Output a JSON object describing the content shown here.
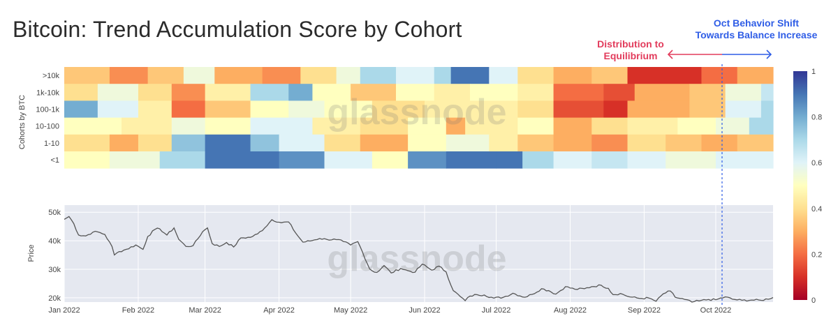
{
  "page": {
    "title": "Bitcoin: Trend Accumulation Score by Cohort"
  },
  "annotations": {
    "distribution": [
      "Distribution to",
      "Equilibrium"
    ],
    "oct_shift": [
      "Oct Behavior Shift",
      "Towards Balance Increase"
    ]
  },
  "watermark": "glassnode",
  "colors": {
    "dist_annotation": "#e23c5c",
    "oct_annotation": "#2f5de6",
    "price_line": "#555555",
    "price_panel_bg": "#e5e8f0"
  },
  "chart_data": [
    {
      "type": "heatmap",
      "title": "Bitcoin: Trend Accumulation Score by Cohort",
      "ylabel": "Cohorts by BTC",
      "rows": [
        ">10k",
        "1k-10k",
        "100-1k",
        "10-100",
        "1-10",
        "<1"
      ],
      "x_range": [
        "2022-01-01",
        "2022-10-25"
      ],
      "colorscale": {
        "min": 0,
        "max": 1,
        "ticks": [
          0,
          0.2,
          0.4,
          0.6,
          0.8,
          1
        ],
        "scheme": "RdYlBu"
      },
      "segments": {
        ">10k": [
          [
            "2022-01-01",
            0.35
          ],
          [
            "2022-01-20",
            0.25
          ],
          [
            "2022-02-05",
            0.35
          ],
          [
            "2022-02-20",
            0.55
          ],
          [
            "2022-03-05",
            0.3
          ],
          [
            "2022-03-25",
            0.25
          ],
          [
            "2022-04-10",
            0.4
          ],
          [
            "2022-04-25",
            0.55
          ],
          [
            "2022-05-05",
            0.7
          ],
          [
            "2022-05-20",
            0.6
          ],
          [
            "2022-06-05",
            0.7
          ],
          [
            "2022-06-12",
            0.9
          ],
          [
            "2022-06-28",
            0.6
          ],
          [
            "2022-07-10",
            0.4
          ],
          [
            "2022-07-25",
            0.3
          ],
          [
            "2022-08-10",
            0.35
          ],
          [
            "2022-08-25",
            0.1
          ],
          [
            "2022-09-25",
            0.2
          ],
          [
            "2022-10-10",
            0.3
          ]
        ],
        "1k-10k": [
          [
            "2022-01-01",
            0.4
          ],
          [
            "2022-01-15",
            0.55
          ],
          [
            "2022-02-01",
            0.4
          ],
          [
            "2022-02-15",
            0.25
          ],
          [
            "2022-03-01",
            0.45
          ],
          [
            "2022-03-20",
            0.7
          ],
          [
            "2022-04-05",
            0.8
          ],
          [
            "2022-04-15",
            0.5
          ],
          [
            "2022-05-01",
            0.35
          ],
          [
            "2022-05-20",
            0.5
          ],
          [
            "2022-06-05",
            0.45
          ],
          [
            "2022-06-20",
            0.5
          ],
          [
            "2022-07-10",
            0.45
          ],
          [
            "2022-07-25",
            0.2
          ],
          [
            "2022-08-15",
            0.15
          ],
          [
            "2022-08-28",
            0.3
          ],
          [
            "2022-09-20",
            0.35
          ],
          [
            "2022-10-05",
            0.55
          ],
          [
            "2022-10-20",
            0.65
          ]
        ],
        "100-1k": [
          [
            "2022-01-01",
            0.8
          ],
          [
            "2022-01-15",
            0.6
          ],
          [
            "2022-02-01",
            0.45
          ],
          [
            "2022-02-15",
            0.2
          ],
          [
            "2022-03-01",
            0.35
          ],
          [
            "2022-03-20",
            0.5
          ],
          [
            "2022-04-05",
            0.55
          ],
          [
            "2022-04-20",
            0.5
          ],
          [
            "2022-05-10",
            0.4
          ],
          [
            "2022-06-01",
            0.45
          ],
          [
            "2022-06-20",
            0.45
          ],
          [
            "2022-07-10",
            0.4
          ],
          [
            "2022-07-25",
            0.15
          ],
          [
            "2022-08-15",
            0.1
          ],
          [
            "2022-08-25",
            0.3
          ],
          [
            "2022-09-20",
            0.35
          ],
          [
            "2022-10-05",
            0.6
          ],
          [
            "2022-10-20",
            0.7
          ]
        ],
        "10-100": [
          [
            "2022-01-01",
            0.5
          ],
          [
            "2022-01-25",
            0.45
          ],
          [
            "2022-02-15",
            0.55
          ],
          [
            "2022-03-01",
            0.5
          ],
          [
            "2022-03-20",
            0.6
          ],
          [
            "2022-04-15",
            0.45
          ],
          [
            "2022-05-05",
            0.4
          ],
          [
            "2022-05-25",
            0.5
          ],
          [
            "2022-06-10",
            0.3
          ],
          [
            "2022-06-18",
            0.45
          ],
          [
            "2022-07-10",
            0.5
          ],
          [
            "2022-07-25",
            0.3
          ],
          [
            "2022-08-10",
            0.4
          ],
          [
            "2022-08-25",
            0.45
          ],
          [
            "2022-09-15",
            0.5
          ],
          [
            "2022-10-01",
            0.55
          ],
          [
            "2022-10-15",
            0.7
          ]
        ],
        "1-10": [
          [
            "2022-01-01",
            0.4
          ],
          [
            "2022-01-20",
            0.3
          ],
          [
            "2022-02-01",
            0.4
          ],
          [
            "2022-02-15",
            0.75
          ],
          [
            "2022-03-01",
            0.9
          ],
          [
            "2022-03-20",
            0.75
          ],
          [
            "2022-04-01",
            0.6
          ],
          [
            "2022-04-20",
            0.4
          ],
          [
            "2022-05-05",
            0.3
          ],
          [
            "2022-05-25",
            0.5
          ],
          [
            "2022-06-10",
            0.55
          ],
          [
            "2022-06-28",
            0.45
          ],
          [
            "2022-07-10",
            0.35
          ],
          [
            "2022-07-25",
            0.3
          ],
          [
            "2022-08-10",
            0.25
          ],
          [
            "2022-08-25",
            0.4
          ],
          [
            "2022-09-10",
            0.35
          ],
          [
            "2022-09-25",
            0.3
          ],
          [
            "2022-10-10",
            0.35
          ]
        ],
        "<1": [
          [
            "2022-01-01",
            0.5
          ],
          [
            "2022-01-20",
            0.55
          ],
          [
            "2022-02-10",
            0.7
          ],
          [
            "2022-03-01",
            0.9
          ],
          [
            "2022-04-01",
            0.85
          ],
          [
            "2022-04-20",
            0.6
          ],
          [
            "2022-05-10",
            0.5
          ],
          [
            "2022-05-25",
            0.85
          ],
          [
            "2022-06-10",
            0.9
          ],
          [
            "2022-07-01",
            0.9
          ],
          [
            "2022-07-12",
            0.7
          ],
          [
            "2022-07-25",
            0.6
          ],
          [
            "2022-08-10",
            0.65
          ],
          [
            "2022-08-25",
            0.6
          ],
          [
            "2022-09-10",
            0.55
          ],
          [
            "2022-10-01",
            0.6
          ],
          [
            "2022-10-15",
            0.6
          ]
        ]
      }
    },
    {
      "type": "line",
      "ylabel": "Price",
      "x_ticks": [
        "Jan 2022",
        "Feb 2022",
        "Mar 2022",
        "Apr 2022",
        "May 2022",
        "Jun 2022",
        "Jul 2022",
        "Aug 2022",
        "Sep 2022",
        "Oct 2022"
      ],
      "y_ticks": [
        "20k",
        "30k",
        "40k",
        "50k"
      ],
      "ylim": [
        18500,
        52500
      ],
      "x_range": [
        "2022-01-01",
        "2022-10-25"
      ],
      "series": [
        {
          "points": [
            [
              "2022-01-01",
              47500
            ],
            [
              "2022-01-03",
              48500
            ],
            [
              "2022-01-05",
              46000
            ],
            [
              "2022-01-07",
              42000
            ],
            [
              "2022-01-10",
              41700
            ],
            [
              "2022-01-13",
              43000
            ],
            [
              "2022-01-15",
              43100
            ],
            [
              "2022-01-18",
              42200
            ],
            [
              "2022-01-21",
              38000
            ],
            [
              "2022-01-22",
              35000
            ],
            [
              "2022-01-24",
              36200
            ],
            [
              "2022-01-27",
              37000
            ],
            [
              "2022-01-31",
              38500
            ],
            [
              "2022-02-03",
              37000
            ],
            [
              "2022-02-05",
              41500
            ],
            [
              "2022-02-08",
              44000
            ],
            [
              "2022-02-10",
              44200
            ],
            [
              "2022-02-13",
              42000
            ],
            [
              "2022-02-16",
              44500
            ],
            [
              "2022-02-18",
              40500
            ],
            [
              "2022-02-21",
              38000
            ],
            [
              "2022-02-24",
              38300
            ],
            [
              "2022-02-28",
              43200
            ],
            [
              "2022-03-02",
              44500
            ],
            [
              "2022-03-04",
              39000
            ],
            [
              "2022-03-07",
              38000
            ],
            [
              "2022-03-10",
              39400
            ],
            [
              "2022-03-13",
              37800
            ],
            [
              "2022-03-16",
              41000
            ],
            [
              "2022-03-20",
              41200
            ],
            [
              "2022-03-23",
              42400
            ],
            [
              "2022-03-26",
              44500
            ],
            [
              "2022-03-29",
              47400
            ],
            [
              "2022-04-02",
              46300
            ],
            [
              "2022-04-05",
              46600
            ],
            [
              "2022-04-08",
              42700
            ],
            [
              "2022-04-11",
              39500
            ],
            [
              "2022-04-14",
              39900
            ],
            [
              "2022-04-18",
              40800
            ],
            [
              "2022-04-21",
              40500
            ],
            [
              "2022-04-25",
              40400
            ],
            [
              "2022-04-28",
              39700
            ],
            [
              "2022-05-01",
              38500
            ],
            [
              "2022-05-04",
              39700
            ],
            [
              "2022-05-06",
              36000
            ],
            [
              "2022-05-09",
              30100
            ],
            [
              "2022-05-11",
              29000
            ],
            [
              "2022-05-12",
              28900
            ],
            [
              "2022-05-15",
              31300
            ],
            [
              "2022-05-18",
              28700
            ],
            [
              "2022-05-22",
              30300
            ],
            [
              "2022-05-25",
              29500
            ],
            [
              "2022-05-28",
              29000
            ],
            [
              "2022-05-31",
              31800
            ],
            [
              "2022-06-04",
              29700
            ],
            [
              "2022-06-07",
              31100
            ],
            [
              "2022-06-10",
              29100
            ],
            [
              "2022-06-13",
              22500
            ],
            [
              "2022-06-16",
              20400
            ],
            [
              "2022-06-18",
              19000
            ],
            [
              "2022-06-20",
              20600
            ],
            [
              "2022-06-23",
              21100
            ],
            [
              "2022-06-26",
              21000
            ],
            [
              "2022-06-30",
              19900
            ],
            [
              "2022-07-04",
              20200
            ],
            [
              "2022-07-08",
              21600
            ],
            [
              "2022-07-13",
              20200
            ],
            [
              "2022-07-16",
              21200
            ],
            [
              "2022-07-20",
              23200
            ],
            [
              "2022-07-23",
              22500
            ],
            [
              "2022-07-26",
              21300
            ],
            [
              "2022-07-30",
              23900
            ],
            [
              "2022-08-03",
              23000
            ],
            [
              "2022-08-07",
              23200
            ],
            [
              "2022-08-10",
              23900
            ],
            [
              "2022-08-14",
              24400
            ],
            [
              "2022-08-17",
              23300
            ],
            [
              "2022-08-19",
              21100
            ],
            [
              "2022-08-22",
              21500
            ],
            [
              "2022-08-26",
              20300
            ],
            [
              "2022-08-30",
              19800
            ],
            [
              "2022-09-03",
              19900
            ],
            [
              "2022-09-06",
              18800
            ],
            [
              "2022-09-09",
              21400
            ],
            [
              "2022-09-12",
              22400
            ],
            [
              "2022-09-14",
              20200
            ],
            [
              "2022-09-18",
              19400
            ],
            [
              "2022-09-21",
              18500
            ],
            [
              "2022-09-24",
              18900
            ],
            [
              "2022-09-28",
              19400
            ],
            [
              "2022-10-01",
              19300
            ],
            [
              "2022-10-05",
              20300
            ],
            [
              "2022-10-08",
              19500
            ],
            [
              "2022-10-12",
              19100
            ],
            [
              "2022-10-16",
              19200
            ],
            [
              "2022-10-20",
              19100
            ],
            [
              "2022-10-25",
              20100
            ]
          ]
        }
      ]
    }
  ]
}
